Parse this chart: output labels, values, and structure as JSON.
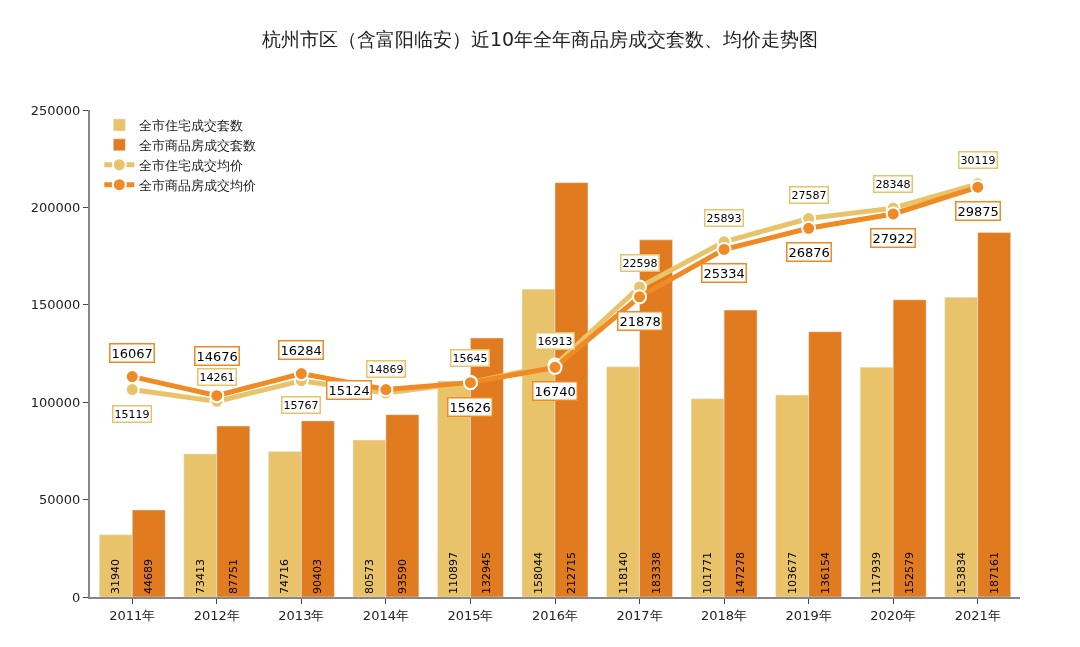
{
  "chart_data": {
    "type": "bar",
    "title": "杭州市区（含富阳临安）近10年全年商品房成交套数、均价走势图",
    "categories": [
      "2011年",
      "2012年",
      "2013年",
      "2014年",
      "2015年",
      "2016年",
      "2017年",
      "2018年",
      "2019年",
      "2020年",
      "2021年"
    ],
    "series": [
      {
        "name": "全市住宅成交套数",
        "color": "#e8c36a",
        "values": [
          31940,
          73413,
          74716,
          80573,
          110897,
          158044,
          118140,
          101771,
          103677,
          117939,
          153834
        ]
      },
      {
        "name": "全市商品房成交套数",
        "color": "#e07b1f",
        "values": [
          44689,
          87751,
          90403,
          93590,
          132945,
          212715,
          183338,
          147278,
          136154,
          152579,
          187161
        ]
      },
      {
        "name": "全市住宅成交均价",
        "type": "line",
        "axis": "y2",
        "color": "#e8c36a",
        "values": [
          15119,
          14261,
          15767,
          14869,
          15645,
          16913,
          22598,
          25893,
          27587,
          28348,
          30119
        ]
      },
      {
        "name": "全市商品房成交均价",
        "type": "line",
        "axis": "y2",
        "color": "#ef8a25",
        "values": [
          16067,
          14676,
          16284,
          15124,
          15626,
          16740,
          21878,
          25334,
          26876,
          27922,
          29875
        ]
      }
    ],
    "ylim": [
      0,
      250000
    ],
    "yticks": [
      0,
      50000,
      100000,
      150000,
      200000,
      250000
    ],
    "y2lim": [
      0,
      35500
    ],
    "data_labels": true,
    "legend": "top left",
    "grid": false,
    "marker": "circle",
    "line_style": "solid"
  }
}
